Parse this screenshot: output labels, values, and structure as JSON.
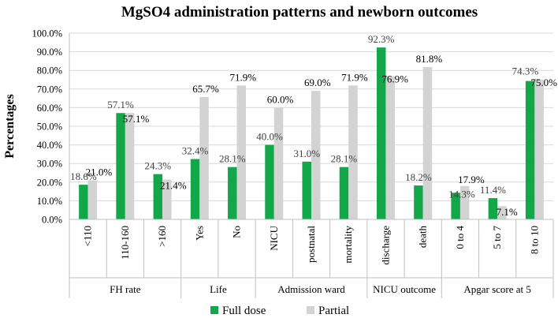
{
  "chart_data": {
    "type": "bar",
    "title": "MgSO4 administration patterns and newborn outcomes",
    "ylabel": "Percentages",
    "xlabel": "",
    "ylim": [
      0,
      100
    ],
    "yticks": [
      "0.0%",
      "10.0%",
      "20.0%",
      "30.0%",
      "40.0%",
      "50.0%",
      "60.0%",
      "70.0%",
      "80.0%",
      "90.0%",
      "100.0%"
    ],
    "groups": [
      {
        "name": "FH rate",
        "categories": [
          "<110",
          "110-160",
          ">160"
        ]
      },
      {
        "name": "Life",
        "categories": [
          "Yes",
          "No"
        ]
      },
      {
        "name": "Admission ward",
        "categories": [
          "NICU",
          "postnatal",
          "mortality"
        ]
      },
      {
        "name": "NICU outcome",
        "categories": [
          "discharge",
          "death"
        ]
      },
      {
        "name": "Apgar score at 5",
        "categories": [
          "0 to 4",
          "5 to 7",
          "8 to 10"
        ]
      }
    ],
    "categories": [
      "<110",
      "110-160",
      ">160",
      "Yes",
      "No",
      "NICU",
      "postnatal",
      "mortality",
      "discharge",
      "death",
      "0 to 4",
      "5 to 7",
      "8 to 10"
    ],
    "series": [
      {
        "name": "Full dose",
        "color": "#12a84a",
        "values": [
          18.6,
          57.1,
          24.3,
          32.4,
          28.1,
          40.0,
          31.0,
          28.1,
          92.3,
          18.2,
          14.3,
          11.4,
          74.3
        ],
        "labels": [
          "18.6%",
          "57.1%",
          "24.3%",
          "32.4%",
          "28.1%",
          "40.0%",
          "31.0%",
          "28.1%",
          "92.3%",
          "18.2%",
          "14.3%",
          "11.4%",
          "74.3%"
        ]
      },
      {
        "name": "Partial",
        "color": "#d3d3d3",
        "values": [
          21.0,
          57.1,
          21.4,
          65.7,
          71.9,
          60.0,
          69.0,
          71.9,
          76.9,
          81.8,
          17.9,
          7.1,
          75.0
        ],
        "labels": [
          "21.0%",
          "57.1%",
          "21.4%",
          "65.7%",
          "71.9%",
          "60.0%",
          "69.0%",
          "71.9%",
          "76.9%",
          "81.8%",
          "17.9%",
          "7.1%",
          "75.0%"
        ]
      }
    ],
    "legend": "bottom"
  }
}
